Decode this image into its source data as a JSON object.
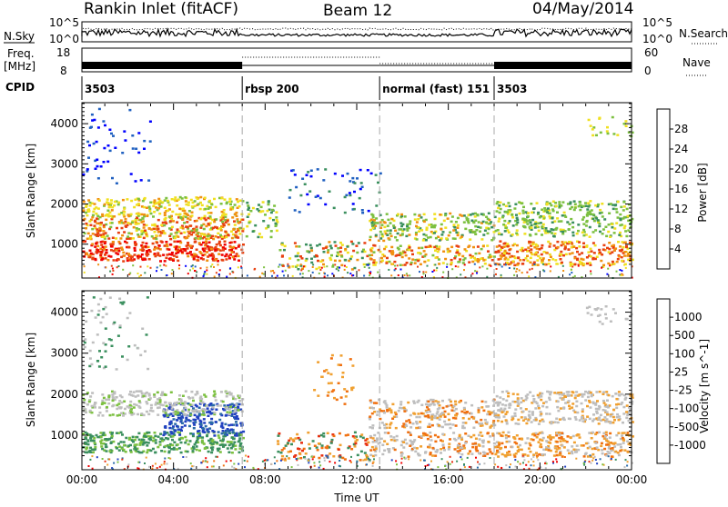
{
  "header": {
    "station": "Rankin Inlet (fitACF)",
    "beam": "Beam 12",
    "date": "04/May/2014"
  },
  "left_labels": {
    "nsky": "N.Sky",
    "freq": "Freq.",
    "mhz": "[MHz]",
    "cpid": "CPID"
  },
  "right_labels": {
    "nsearch": "N.Search",
    "nave": "Nave"
  },
  "noise_axis": {
    "left_top": "10^5",
    "left_bottom": "10^0",
    "right_top": "10^5",
    "right_bottom": "10^0"
  },
  "freq_axis": {
    "left_top": "18",
    "left_bottom": "8",
    "right_top": "60",
    "right_bottom": "0"
  },
  "cpid_segments": [
    {
      "start": 0,
      "end": 7,
      "label": "3503"
    },
    {
      "start": 7,
      "end": 13,
      "label": "rbsp 200"
    },
    {
      "start": 13,
      "end": 18,
      "label": "normal (fast) 151"
    },
    {
      "start": 18,
      "end": 24,
      "label": "3503"
    }
  ],
  "chart_data": [
    {
      "type": "heatmap",
      "parameter": "Power",
      "ylabel": "Slant Range [km]",
      "colorbar_label": "Power [dB]",
      "colorbar_ticks": [
        "4",
        "8",
        "12",
        "16",
        "20",
        "24",
        "28"
      ],
      "colorbar_colors": [
        "#0000ff",
        "#2060c0",
        "#3a8f5e",
        "#7cc040",
        "#f0e020",
        "#f09010",
        "#e84010",
        "#f00000"
      ],
      "xlim": [
        0,
        24
      ],
      "ylim": [
        180,
        4500
      ],
      "yticks": [
        1000,
        2000,
        3000,
        4000
      ]
    },
    {
      "type": "heatmap",
      "parameter": "Velocity",
      "ylabel": "Slant Range [km]",
      "xlabel": "Time UT",
      "colorbar_label": "Velocity [m s^-1]",
      "colorbar_ticks": [
        "1000",
        "500",
        "100",
        "25",
        "-25",
        "-100",
        "-500",
        "-1000"
      ],
      "colorbar_colors": [
        "#2040c0",
        "#2a6aa8",
        "#3a8f5e",
        "#7cc040",
        "#bebebe",
        "#f0a030",
        "#f07010",
        "#e83010",
        "#f00000"
      ],
      "xlim": [
        0,
        24
      ],
      "ylim": [
        180,
        4500
      ],
      "yticks": [
        1000,
        2000,
        3000,
        4000
      ],
      "xticks": [
        "00:00",
        "04:00",
        "08:00",
        "12:00",
        "16:00",
        "20:00",
        "00:00"
      ]
    }
  ]
}
